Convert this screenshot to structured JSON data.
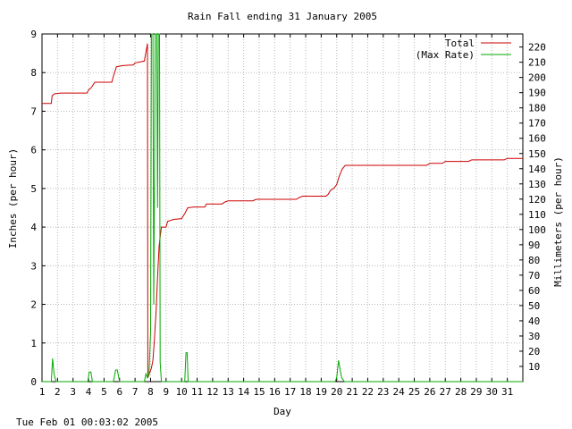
{
  "chart_data": {
    "type": "line",
    "title": "Rain Fall ending 31 January 2005",
    "xlabel": "Day",
    "ylabel_left": "Inches (per hour)",
    "ylabel_right": "Millimeters (per hour)",
    "xlim": [
      1,
      32
    ],
    "ylim_left": [
      0,
      9
    ],
    "ylim_right_mm": [
      0,
      228.6
    ],
    "x_ticks": [
      1,
      2,
      3,
      4,
      5,
      6,
      7,
      8,
      9,
      10,
      11,
      12,
      13,
      14,
      15,
      16,
      17,
      18,
      19,
      20,
      21,
      22,
      23,
      24,
      25,
      26,
      27,
      28,
      29,
      30,
      31
    ],
    "y_left_ticks": [
      0,
      1,
      2,
      3,
      4,
      5,
      6,
      7,
      8,
      9
    ],
    "y_right_ticks": [
      10,
      20,
      30,
      40,
      50,
      60,
      70,
      80,
      90,
      100,
      110,
      120,
      130,
      140,
      150,
      160,
      170,
      180,
      190,
      200,
      210,
      220
    ],
    "grid": true,
    "legend_position": "top-right",
    "footer": "Tue Feb 01 00:03:02 2005",
    "series": [
      {
        "name": "Total",
        "color": "#cc0000",
        "points": [
          [
            1.0,
            7.2
          ],
          [
            1.6,
            7.2
          ],
          [
            1.65,
            7.4
          ],
          [
            1.8,
            7.45
          ],
          [
            2.2,
            7.47
          ],
          [
            3.0,
            7.47
          ],
          [
            3.9,
            7.47
          ],
          [
            4.0,
            7.55
          ],
          [
            4.2,
            7.62
          ],
          [
            4.4,
            7.75
          ],
          [
            5.5,
            7.75
          ],
          [
            5.6,
            7.9
          ],
          [
            5.8,
            8.15
          ],
          [
            6.2,
            8.18
          ],
          [
            6.9,
            8.2
          ],
          [
            7.0,
            8.25
          ],
          [
            7.6,
            8.3
          ],
          [
            7.8,
            8.75
          ],
          [
            7.82,
            0.1
          ],
          [
            8.05,
            0.35
          ],
          [
            8.15,
            0.55
          ],
          [
            8.25,
            1.1
          ],
          [
            8.35,
            1.8
          ],
          [
            8.45,
            2.7
          ],
          [
            8.55,
            3.5
          ],
          [
            8.62,
            3.75
          ],
          [
            8.7,
            4.0
          ],
          [
            9.0,
            4.0
          ],
          [
            9.1,
            4.15
          ],
          [
            9.5,
            4.2
          ],
          [
            10.0,
            4.22
          ],
          [
            10.2,
            4.35
          ],
          [
            10.4,
            4.5
          ],
          [
            10.8,
            4.52
          ],
          [
            11.5,
            4.52
          ],
          [
            11.6,
            4.6
          ],
          [
            12.6,
            4.6
          ],
          [
            12.8,
            4.65
          ],
          [
            13.0,
            4.68
          ],
          [
            14.6,
            4.68
          ],
          [
            14.8,
            4.72
          ],
          [
            17.4,
            4.72
          ],
          [
            17.6,
            4.77
          ],
          [
            17.8,
            4.8
          ],
          [
            19.3,
            4.8
          ],
          [
            19.45,
            4.85
          ],
          [
            19.6,
            4.95
          ],
          [
            19.8,
            5.0
          ],
          [
            20.0,
            5.1
          ],
          [
            20.15,
            5.3
          ],
          [
            20.35,
            5.5
          ],
          [
            20.55,
            5.6
          ],
          [
            22.0,
            5.6
          ],
          [
            23.0,
            5.6
          ],
          [
            25.8,
            5.6
          ],
          [
            26.0,
            5.65
          ],
          [
            26.8,
            5.65
          ],
          [
            27.0,
            5.7
          ],
          [
            28.5,
            5.7
          ],
          [
            28.7,
            5.74
          ],
          [
            30.8,
            5.74
          ],
          [
            31.0,
            5.78
          ],
          [
            32.0,
            5.78
          ]
        ]
      },
      {
        "name": "(Max Rate)",
        "color": "#00aa00",
        "points": [
          [
            1.0,
            0.0
          ],
          [
            1.6,
            0.0
          ],
          [
            1.68,
            0.6
          ],
          [
            1.78,
            0.2
          ],
          [
            1.9,
            0.0
          ],
          [
            3.95,
            0.0
          ],
          [
            4.05,
            0.25
          ],
          [
            4.15,
            0.25
          ],
          [
            4.25,
            0.0
          ],
          [
            5.6,
            0.0
          ],
          [
            5.75,
            0.3
          ],
          [
            5.85,
            0.3
          ],
          [
            6.0,
            0.0
          ],
          [
            7.6,
            0.0
          ],
          [
            7.7,
            0.2
          ],
          [
            7.8,
            0.1
          ],
          [
            7.9,
            0.2
          ],
          [
            8.0,
            1.3
          ],
          [
            8.05,
            9.0
          ],
          [
            8.15,
            9.0
          ],
          [
            8.2,
            2.0
          ],
          [
            8.3,
            9.0
          ],
          [
            8.4,
            9.0
          ],
          [
            8.45,
            4.5
          ],
          [
            8.5,
            9.0
          ],
          [
            8.58,
            9.0
          ],
          [
            8.62,
            0.5
          ],
          [
            8.7,
            0.0
          ],
          [
            10.2,
            0.0
          ],
          [
            10.28,
            0.75
          ],
          [
            10.36,
            0.75
          ],
          [
            10.42,
            0.0
          ],
          [
            19.9,
            0.0
          ],
          [
            20.0,
            0.1
          ],
          [
            20.12,
            0.55
          ],
          [
            20.22,
            0.3
          ],
          [
            20.32,
            0.1
          ],
          [
            20.5,
            0.0
          ],
          [
            32.0,
            0.0
          ]
        ]
      }
    ]
  }
}
